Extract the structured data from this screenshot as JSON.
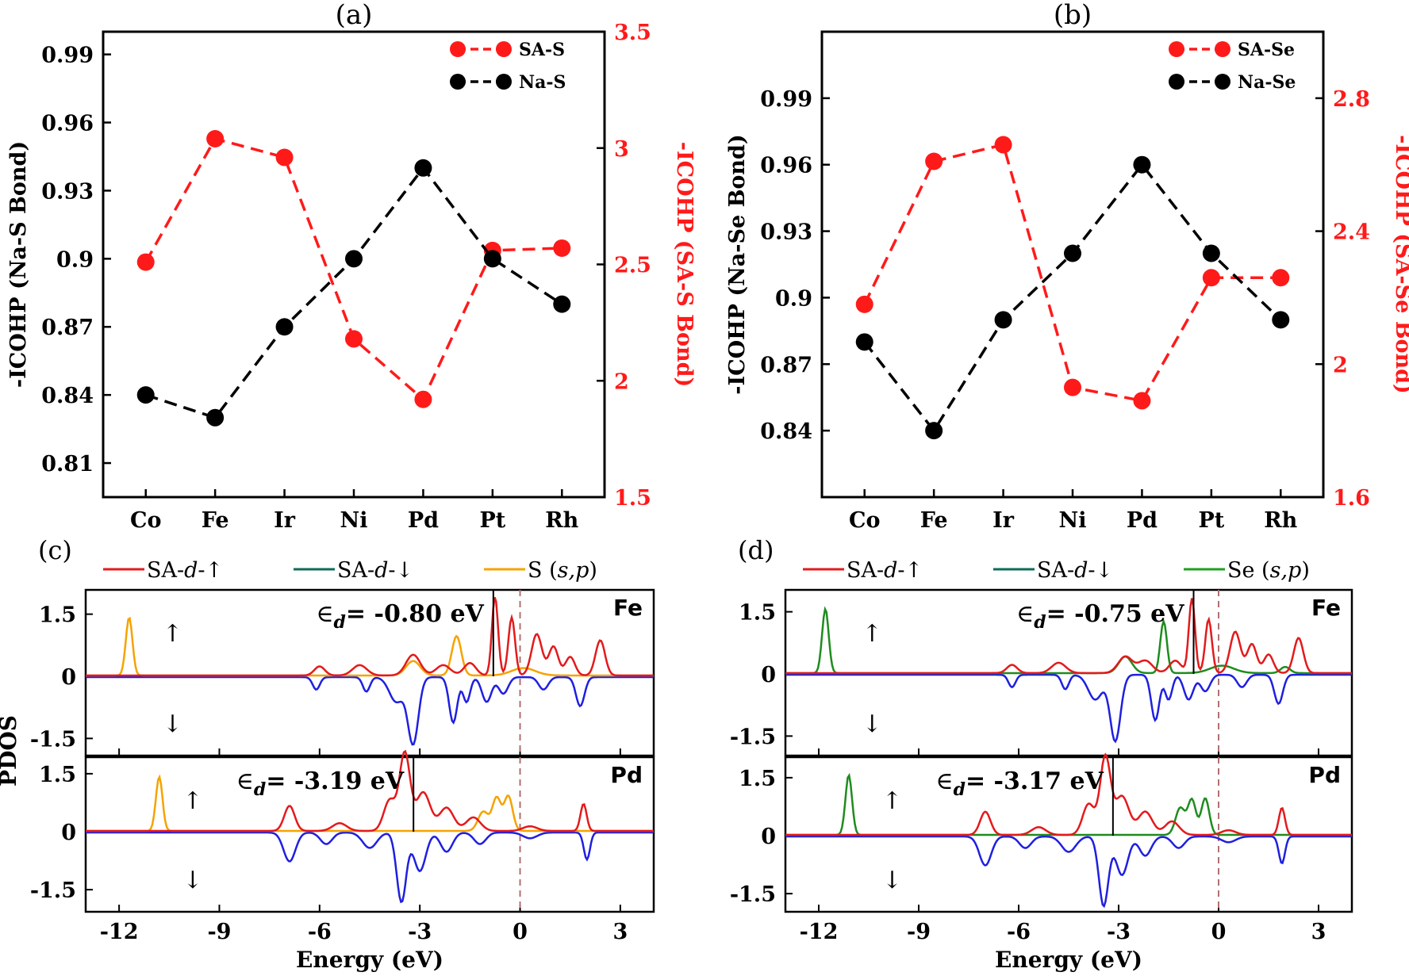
{
  "chart_data": [
    {
      "panel": "(a)",
      "type": "line",
      "categories": [
        "Co",
        "Fe",
        "Ir",
        "Ni",
        "Pd",
        "Pt",
        "Rh"
      ],
      "ylabel": "-ICOHP (Na-S Bond)",
      "y2label": "-ICOHP (SA-S Bond)",
      "ylim": [
        0.795,
        1.0
      ],
      "yticks": [
        "0.81",
        "0.84",
        "0.87",
        "0.9",
        "0.93",
        "0.96",
        "0.99"
      ],
      "y2lim": [
        1.5,
        3.5
      ],
      "y2ticks": [
        "1.5",
        "2",
        "2.5",
        "3",
        "3.5"
      ],
      "legend_position": "top-right",
      "series": [
        {
          "name": "SA-S",
          "axis": "right",
          "color": "#ff1a1a",
          "values": [
            2.51,
            3.04,
            2.96,
            2.18,
            1.92,
            2.56,
            2.57
          ]
        },
        {
          "name": "Na-S",
          "axis": "left",
          "color": "#000000",
          "values": [
            0.84,
            0.83,
            0.87,
            0.9,
            0.94,
            0.9,
            0.88
          ]
        }
      ]
    },
    {
      "panel": "(b)",
      "type": "line",
      "categories": [
        "Co",
        "Fe",
        "Ir",
        "Ni",
        "Pd",
        "Pt",
        "Rh"
      ],
      "ylabel": "-ICOHP (Na-Se Bond)",
      "y2label": "-ICOHP (SA-Se Bond)",
      "ylim": [
        0.81,
        1.02
      ],
      "yticks": [
        "0.84",
        "0.87",
        "0.9",
        "0.93",
        "0.96",
        "0.99"
      ],
      "y2lim": [
        1.6,
        3.0
      ],
      "y2ticks": [
        "1.6",
        "2",
        "2.4",
        "2.8"
      ],
      "legend_position": "top-right",
      "series": [
        {
          "name": "SA-Se",
          "axis": "right",
          "color": "#ff1a1a",
          "values": [
            2.18,
            2.61,
            2.66,
            1.93,
            1.89,
            2.26,
            2.26
          ]
        },
        {
          "name": "Na-Se",
          "axis": "left",
          "color": "#000000",
          "values": [
            0.88,
            0.84,
            0.89,
            0.92,
            0.96,
            0.92,
            0.89
          ]
        }
      ]
    },
    {
      "panel": "(c)",
      "type": "line",
      "xlabel": "Energy (eV)",
      "ylabel": "PDOS",
      "xlim": [
        -13,
        4
      ],
      "xticks": [
        "-12",
        "-9",
        "-6",
        "-3",
        "0",
        "3"
      ],
      "yticks": [
        "1.5",
        "0",
        "-1.5"
      ],
      "legend": [
        {
          "label": "SA-",
          "italic": "d",
          "arrow": "-↑",
          "color": "#e31a1c"
        },
        {
          "label": "SA-",
          "italic": "d",
          "arrow": "-↓",
          "color": "#0e6b57"
        },
        {
          "label": "S (",
          "italic": "s,p",
          "arrow": ")",
          "color": "#f5a300"
        }
      ],
      "subpanels": [
        {
          "metal": "Fe",
          "ed_prefix": "∈",
          "ed_sub": "d",
          "ed_value": "= -0.80 eV",
          "ed": -0.8,
          "colors": {
            "up": "#e31a1c",
            "down": "#1f1fe0",
            "ligand": "#f5a300"
          }
        },
        {
          "metal": "Pd",
          "ed_prefix": "∈",
          "ed_sub": "d",
          "ed_value": "= -3.19 eV",
          "ed": -3.19,
          "colors": {
            "up": "#e31a1c",
            "down": "#1f1fe0",
            "ligand": "#f5a300"
          }
        }
      ],
      "up_arrow": "↑",
      "down_arrow": "↓"
    },
    {
      "panel": "(d)",
      "type": "line",
      "xlabel": "Energy (eV)",
      "xlim": [
        -13,
        4
      ],
      "xticks": [
        "-12",
        "-9",
        "-6",
        "-3",
        "0",
        "3"
      ],
      "yticks": [
        "1.5",
        "0",
        "-1.5"
      ],
      "legend": [
        {
          "label": "SA-",
          "italic": "d",
          "arrow": "-↑",
          "color": "#e31a1c"
        },
        {
          "label": "SA-",
          "italic": "d",
          "arrow": "-↓",
          "color": "#0e6b57"
        },
        {
          "label": "Se (",
          "italic": "s,p",
          "arrow": ")",
          "color": "#1ea01e"
        }
      ],
      "subpanels": [
        {
          "metal": "Fe",
          "ed_prefix": "∈",
          "ed_sub": "d",
          "ed_value": "= -0.75 eV",
          "ed": -0.75,
          "colors": {
            "up": "#e31a1c",
            "down": "#1f1fe0",
            "ligand": "#1e8c1e"
          }
        },
        {
          "metal": "Pd",
          "ed_prefix": "∈",
          "ed_sub": "d",
          "ed_value": "= -3.17 eV",
          "ed": -3.17,
          "colors": {
            "up": "#e31a1c",
            "down": "#1f1fe0",
            "ligand": "#1e8c1e"
          }
        }
      ],
      "up_arrow": "↑",
      "down_arrow": "↓"
    }
  ]
}
